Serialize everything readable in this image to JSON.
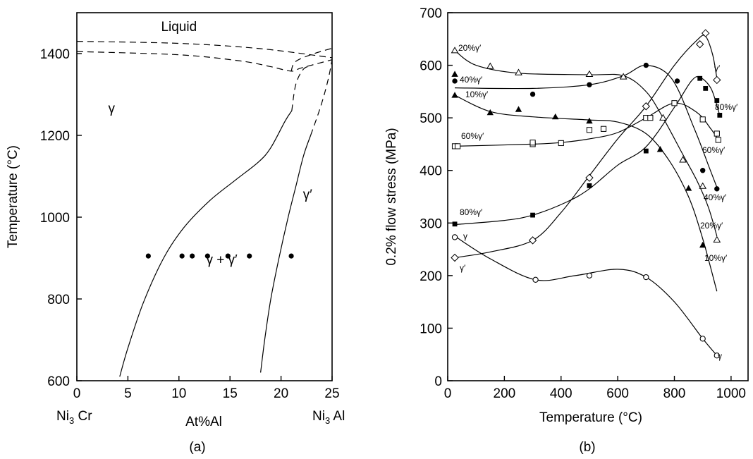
{
  "chart_data": [
    {
      "id": "a",
      "type": "phase-diagram",
      "panel_label": "(a)",
      "xlabel": "At%Al",
      "ylabel": "Temperature (°C)",
      "xlim": [
        0,
        25
      ],
      "ylim": [
        600,
        1500
      ],
      "xticks": [
        0,
        5,
        10,
        15,
        20,
        25
      ],
      "yticks": [
        600,
        800,
        1000,
        1200,
        1400
      ],
      "x_end_labels": {
        "left": "Ni",
        "left_sub": "3",
        "left_tail": " Cr",
        "right": "Ni",
        "right_sub": "3",
        "right_tail": " Al"
      },
      "regions": [
        {
          "label": "Liquid",
          "x": 10,
          "y": 1455
        },
        {
          "label": "γ",
          "x": 3.4,
          "y": 1255
        },
        {
          "label": "γ′",
          "x": 22.6,
          "y": 1045
        },
        {
          "label": "γ + γ′",
          "x": 14.2,
          "y": 885
        }
      ],
      "dashed_boundaries": [
        [
          [
            0,
            1430
          ],
          [
            10,
            1425
          ],
          [
            18,
            1412
          ],
          [
            25,
            1390
          ]
        ],
        [
          [
            0,
            1405
          ],
          [
            10,
            1397
          ],
          [
            16,
            1382
          ],
          [
            19,
            1368
          ],
          [
            21,
            1357
          ],
          [
            22,
            1365
          ],
          [
            25,
            1385
          ]
        ],
        [
          [
            21,
            1357
          ],
          [
            21.4,
            1380
          ],
          [
            23,
            1398
          ],
          [
            25,
            1413
          ]
        ],
        [
          [
            21.05,
            1260
          ],
          [
            21.45,
            1325
          ],
          [
            22.2,
            1362
          ],
          [
            23,
            1370
          ]
        ],
        [
          [
            22.9,
            1200
          ],
          [
            23.9,
            1272
          ],
          [
            24.6,
            1335
          ],
          [
            25,
            1385
          ]
        ]
      ],
      "solid_boundaries": [
        [
          [
            4.2,
            610
          ],
          [
            5,
            680
          ],
          [
            6.5,
            790
          ],
          [
            8.5,
            900
          ],
          [
            10.5,
            975
          ],
          [
            13,
            1040
          ],
          [
            15.5,
            1090
          ],
          [
            17.8,
            1135
          ],
          [
            19,
            1170
          ],
          [
            20.4,
            1235
          ],
          [
            21.05,
            1260
          ]
        ],
        [
          [
            18,
            620
          ],
          [
            18.4,
            700
          ],
          [
            19,
            800
          ],
          [
            19.8,
            900
          ],
          [
            20.7,
            1000
          ],
          [
            21.5,
            1080
          ],
          [
            22.2,
            1150
          ],
          [
            22.9,
            1200
          ]
        ]
      ],
      "data_points": [
        {
          "x": 7,
          "y": 905
        },
        {
          "x": 10.3,
          "y": 905
        },
        {
          "x": 11.3,
          "y": 905
        },
        {
          "x": 12.8,
          "y": 905
        },
        {
          "x": 14.8,
          "y": 905
        },
        {
          "x": 16.9,
          "y": 905
        },
        {
          "x": 21,
          "y": 905
        }
      ]
    },
    {
      "id": "b",
      "type": "line-scatter",
      "panel_label": "(b)",
      "xlabel": "Temperature (°C)",
      "ylabel": "0.2% flow stress (MPa)",
      "xlim": [
        0,
        1060
      ],
      "ylim": [
        0,
        700
      ],
      "xticks": [
        0,
        200,
        400,
        600,
        800,
        1000
      ],
      "yticks": [
        0,
        100,
        200,
        300,
        400,
        500,
        600,
        700
      ],
      "series": [
        {
          "name": "20%γ′",
          "end_label": "20%γ′",
          "marker": "triangle-open",
          "points": [
            [
              25,
              628
            ],
            [
              150,
              598
            ],
            [
              250,
              586
            ],
            [
              500,
              583
            ],
            [
              620,
              578
            ],
            [
              760,
              500
            ],
            [
              830,
              420
            ],
            [
              900,
              370
            ],
            [
              950,
              268
            ]
          ],
          "curve": [
            [
              25,
              628
            ],
            [
              100,
              600
            ],
            [
              250,
              585
            ],
            [
              500,
              582
            ],
            [
              620,
              580
            ],
            [
              700,
              550
            ],
            [
              760,
              500
            ],
            [
              830,
              430
            ],
            [
              880,
              380
            ],
            [
              920,
              330
            ],
            [
              950,
              275
            ]
          ]
        },
        {
          "name": "40%γ′",
          "end_label": "40%γ′",
          "marker": "circle-filled",
          "points": [
            [
              25,
              570
            ],
            [
              300,
              545
            ],
            [
              500,
              563
            ],
            [
              700,
              600
            ],
            [
              810,
              570
            ],
            [
              900,
              400
            ],
            [
              950,
              365
            ]
          ],
          "curve": [
            [
              25,
              557
            ],
            [
              300,
              556
            ],
            [
              500,
              563
            ],
            [
              620,
              580
            ],
            [
              700,
              600
            ],
            [
              790,
              575
            ],
            [
              870,
              480
            ],
            [
              920,
              410
            ],
            [
              950,
              368
            ]
          ]
        },
        {
          "name": "10%γ′",
          "end_label": "10%γ′",
          "marker": "triangle-filled",
          "points": [
            [
              25,
              583
            ],
            [
              25,
              543
            ],
            [
              150,
              510
            ],
            [
              250,
              516
            ],
            [
              380,
              502
            ],
            [
              500,
              494
            ],
            [
              750,
              440
            ],
            [
              850,
              366
            ],
            [
              900,
              258
            ]
          ],
          "curve": [
            [
              25,
              543
            ],
            [
              150,
              512
            ],
            [
              300,
              502
            ],
            [
              500,
              496
            ],
            [
              600,
              492
            ],
            [
              700,
              470
            ],
            [
              780,
              420
            ],
            [
              850,
              350
            ],
            [
              900,
              270
            ],
            [
              950,
              170
            ]
          ]
        },
        {
          "name": "60%γ′",
          "end_label": "60%γ′",
          "marker": "square-open",
          "points": [
            [
              25,
              446
            ],
            [
              35,
              446
            ],
            [
              300,
              450
            ],
            [
              300,
              453
            ],
            [
              400,
              452
            ],
            [
              500,
              477
            ],
            [
              550,
              479
            ],
            [
              700,
              500
            ],
            [
              715,
              500
            ],
            [
              800,
              528
            ],
            [
              900,
              497
            ],
            [
              950,
              470
            ],
            [
              955,
              458
            ]
          ],
          "curve": [
            [
              25,
              446
            ],
            [
              300,
              450
            ],
            [
              400,
              453
            ],
            [
              500,
              460
            ],
            [
              600,
              472
            ],
            [
              700,
              500
            ],
            [
              800,
              528
            ],
            [
              880,
              510
            ],
            [
              930,
              478
            ],
            [
              955,
              458
            ]
          ]
        },
        {
          "name": "80%γ′",
          "end_label": "80%γ′",
          "marker": "square-filled",
          "points": [
            [
              25,
              298
            ],
            [
              300,
              315
            ],
            [
              500,
              371
            ],
            [
              700,
              437
            ],
            [
              890,
              575
            ],
            [
              910,
              556
            ],
            [
              950,
              533
            ],
            [
              960,
              505
            ]
          ],
          "curve": [
            [
              25,
              297
            ],
            [
              200,
              305
            ],
            [
              300,
              315
            ],
            [
              420,
              340
            ],
            [
              500,
              365
            ],
            [
              600,
              410
            ],
            [
              700,
              445
            ],
            [
              800,
              520
            ],
            [
              860,
              570
            ],
            [
              890,
              577
            ],
            [
              930,
              555
            ],
            [
              960,
              505
            ]
          ]
        },
        {
          "name": "γ′",
          "end_label": "γ′",
          "marker": "diamond-open",
          "points": [
            [
              25,
              234
            ],
            [
              300,
              267
            ],
            [
              500,
              386
            ],
            [
              700,
              522
            ],
            [
              890,
              640
            ],
            [
              910,
              661
            ],
            [
              950,
              572
            ]
          ],
          "curve": [
            [
              25,
              234
            ],
            [
              150,
              245
            ],
            [
              300,
              267
            ],
            [
              400,
              320
            ],
            [
              500,
              390
            ],
            [
              600,
              460
            ],
            [
              700,
              522
            ],
            [
              800,
              600
            ],
            [
              880,
              648
            ],
            [
              910,
              655
            ],
            [
              935,
              620
            ],
            [
              950,
              575
            ]
          ]
        },
        {
          "name": "γ",
          "end_label": "γ",
          "marker": "circle-open",
          "points": [
            [
              25,
              273
            ],
            [
              310,
              192
            ],
            [
              500,
              200
            ],
            [
              700,
              197
            ],
            [
              900,
              80
            ],
            [
              950,
              48
            ]
          ],
          "curve": [
            [
              25,
              275
            ],
            [
              150,
              232
            ],
            [
              310,
              192
            ],
            [
              450,
              200
            ],
            [
              600,
              212
            ],
            [
              700,
              197
            ],
            [
              800,
              150
            ],
            [
              900,
              80
            ],
            [
              950,
              48
            ]
          ]
        }
      ],
      "start_labels": [
        {
          "series": "20%γ′",
          "text": "20%γ′"
        },
        {
          "series": "40%γ′",
          "text": "40%γ′"
        },
        {
          "series": "10%γ′",
          "text": "10%γ′"
        },
        {
          "series": "60%γ′",
          "text": "60%γ′"
        },
        {
          "series": "80%γ′",
          "text": "80%γ′"
        },
        {
          "series": "γ",
          "text": "γ"
        },
        {
          "series": "γ′",
          "text": "γ′"
        }
      ]
    }
  ]
}
